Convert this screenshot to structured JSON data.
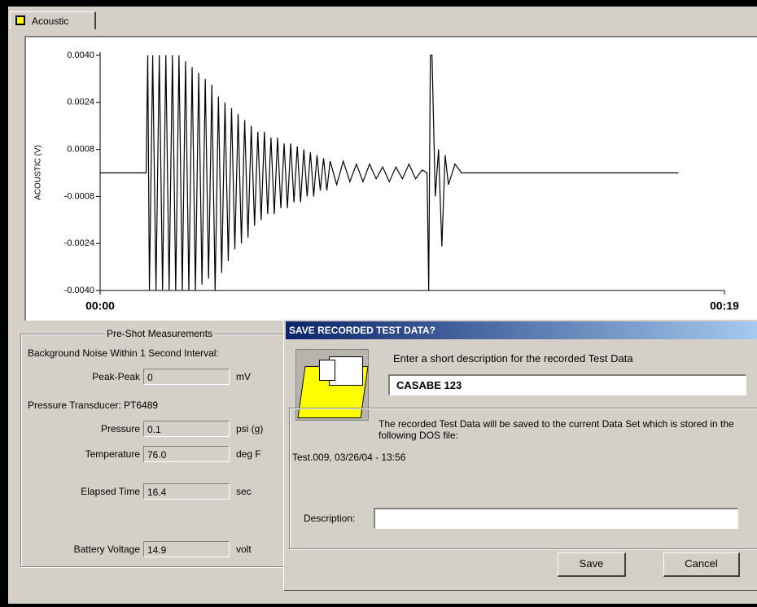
{
  "tab": "Acoustic",
  "chart_data": {
    "type": "line",
    "y_label": "ACOUSTIC (V)",
    "xlim": [
      0,
      19
    ],
    "xticks": [
      {
        "value": 0,
        "label": "00:00"
      },
      {
        "value": 19,
        "label": "00:19"
      }
    ],
    "ylim": [
      -0.004,
      0.004
    ],
    "yticks": [
      {
        "value": 0.004,
        "label": "0.0040"
      },
      {
        "value": 0.0024,
        "label": "0.0024"
      },
      {
        "value": 0.0008,
        "label": "0.0008"
      },
      {
        "value": -0.0008,
        "label": "-0.0008"
      },
      {
        "value": -0.0024,
        "label": "-0.0024"
      },
      {
        "value": -0.004,
        "label": "-0.0040"
      }
    ],
    "color": "#000000",
    "x": [
      0,
      1.4,
      1.45,
      1.5,
      1.6,
      1.7,
      1.8,
      1.9,
      2.0,
      2.1,
      2.2,
      2.3,
      2.4,
      2.5,
      2.6,
      2.7,
      2.8,
      2.9,
      3.0,
      3.1,
      3.2,
      3.3,
      3.4,
      3.5,
      3.6,
      3.7,
      3.8,
      3.9,
      4.0,
      4.1,
      4.2,
      4.3,
      4.4,
      4.5,
      4.6,
      4.7,
      4.8,
      4.9,
      5.0,
      5.1,
      5.2,
      5.3,
      5.4,
      5.5,
      5.6,
      5.7,
      5.8,
      5.9,
      6.0,
      6.1,
      6.2,
      6.3,
      6.4,
      6.5,
      6.6,
      6.7,
      6.8,
      6.9,
      7.0,
      7.2,
      7.4,
      7.6,
      7.8,
      8.0,
      8.2,
      8.4,
      8.6,
      8.8,
      9.0,
      9.2,
      9.4,
      9.6,
      9.8,
      9.95,
      10.0,
      10.05,
      10.1,
      10.2,
      10.3,
      10.4,
      10.5,
      10.6,
      10.8,
      11.0,
      17.6
    ],
    "values": [
      0,
      0,
      0.004,
      -0.004,
      0.004,
      -0.004,
      0.004,
      -0.004,
      0.004,
      -0.004,
      0.004,
      -0.004,
      0.004,
      -0.004,
      0.0038,
      -0.004,
      0.0036,
      -0.004,
      0.0034,
      -0.0038,
      0.0032,
      -0.0036,
      0.003,
      -0.004,
      0.0026,
      -0.0034,
      0.0024,
      -0.003,
      0.0022,
      -0.0026,
      0.002,
      -0.0024,
      0.0018,
      -0.0022,
      0.0016,
      -0.0018,
      0.0014,
      -0.0016,
      0.0014,
      -0.0014,
      0.0012,
      -0.0014,
      0.0012,
      -0.0012,
      0.001,
      -0.0012,
      0.001,
      -0.001,
      0.0009,
      -0.001,
      0.0008,
      -0.0008,
      0.0007,
      -0.0008,
      0.0006,
      -0.0006,
      0.0005,
      -0.0006,
      0.0004,
      -0.0004,
      0.0004,
      -0.0003,
      0.0003,
      -0.0003,
      0.0003,
      -0.0002,
      0.0002,
      -0.0003,
      0.0002,
      -0.0002,
      0.0003,
      -0.0002,
      0.0001,
      0,
      -0.004,
      0.004,
      0.004,
      -0.0008,
      0.0008,
      -0.0025,
      0.0006,
      -0.0004,
      0.0003,
      0,
      0
    ]
  },
  "measurements": {
    "title": "Pre-Shot Measurements",
    "noise_heading": "Background Noise Within 1 Second Interval:",
    "transducer": "Pressure Transducer: PT6489",
    "fields": [
      {
        "label": "Peak-Peak",
        "value": "0",
        "unit": "mV"
      },
      {
        "label": "Pressure",
        "value": "0.1",
        "unit": "psi (g)"
      },
      {
        "label": "Temperature",
        "value": "76.0",
        "unit": "deg F"
      },
      {
        "label": "Elapsed Time",
        "value": "16.4",
        "unit": "sec"
      },
      {
        "label": "Battery Voltage",
        "value": "14.9",
        "unit": "volt"
      }
    ]
  },
  "dialog": {
    "title": "SAVE RECORDED TEST DATA?",
    "prompt": "Enter a short description for the recorded Test Data",
    "short_description": "CASABE 123",
    "info": "The recorded Test Data will be saved to the current Data Set which is stored in the following DOS file:",
    "file": "Test.009, 03/26/04 - 13:56",
    "description_label": "Description:",
    "buttons": [
      "Save",
      "Cancel"
    ]
  }
}
